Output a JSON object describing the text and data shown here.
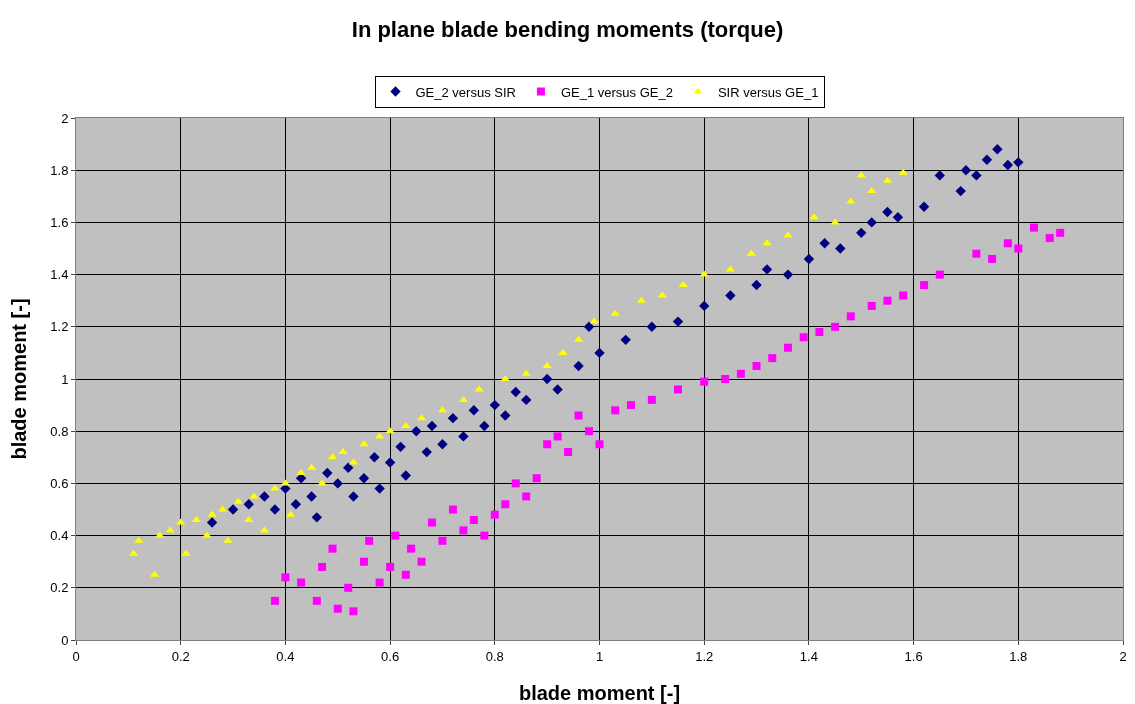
{
  "chart_data": {
    "type": "scatter",
    "title": "In plane blade bending moments (torque)",
    "xlabel": "blade moment [-]",
    "ylabel": "blade moment [-]",
    "xlim": [
      0,
      2
    ],
    "ylim": [
      0,
      2
    ],
    "xticks": [
      0,
      0.2,
      0.4,
      0.6,
      0.8,
      1,
      1.2,
      1.4,
      1.6,
      1.8,
      2
    ],
    "yticks": [
      0,
      0.2,
      0.4,
      0.6,
      0.8,
      1,
      1.2,
      1.4,
      1.6,
      1.8,
      2
    ],
    "grid": true,
    "legend": "top",
    "series": [
      {
        "name": "GE_2 versus SIR",
        "color": "#000080",
        "marker": "diamond",
        "x": [
          0.26,
          0.3,
          0.33,
          0.36,
          0.38,
          0.4,
          0.42,
          0.43,
          0.45,
          0.46,
          0.48,
          0.5,
          0.52,
          0.53,
          0.55,
          0.57,
          0.58,
          0.6,
          0.62,
          0.63,
          0.65,
          0.67,
          0.68,
          0.7,
          0.72,
          0.74,
          0.76,
          0.78,
          0.8,
          0.82,
          0.84,
          0.86,
          0.9,
          0.92,
          0.96,
          0.98,
          1.0,
          1.05,
          1.1,
          1.15,
          1.2,
          1.25,
          1.3,
          1.32,
          1.36,
          1.4,
          1.43,
          1.46,
          1.5,
          1.52,
          1.55,
          1.57,
          1.62,
          1.65,
          1.69,
          1.7,
          1.72,
          1.74,
          1.76,
          1.78,
          1.8
        ],
        "values": [
          0.45,
          0.5,
          0.52,
          0.55,
          0.5,
          0.58,
          0.52,
          0.62,
          0.55,
          0.47,
          0.64,
          0.6,
          0.66,
          0.55,
          0.62,
          0.7,
          0.58,
          0.68,
          0.74,
          0.63,
          0.8,
          0.72,
          0.82,
          0.75,
          0.85,
          0.78,
          0.88,
          0.82,
          0.9,
          0.86,
          0.95,
          0.92,
          1.0,
          0.96,
          1.05,
          1.2,
          1.1,
          1.15,
          1.2,
          1.22,
          1.28,
          1.32,
          1.36,
          1.42,
          1.4,
          1.46,
          1.52,
          1.5,
          1.56,
          1.6,
          1.64,
          1.62,
          1.66,
          1.78,
          1.72,
          1.8,
          1.78,
          1.84,
          1.88,
          1.82,
          1.83
        ]
      },
      {
        "name": "GE_1 versus GE_2",
        "color": "#ff00ff",
        "marker": "square",
        "x": [
          0.38,
          0.4,
          0.43,
          0.46,
          0.47,
          0.49,
          0.5,
          0.52,
          0.53,
          0.55,
          0.56,
          0.58,
          0.6,
          0.61,
          0.63,
          0.64,
          0.66,
          0.68,
          0.7,
          0.72,
          0.74,
          0.76,
          0.78,
          0.8,
          0.82,
          0.84,
          0.86,
          0.88,
          0.9,
          0.92,
          0.94,
          0.96,
          0.98,
          1.0,
          1.03,
          1.06,
          1.1,
          1.15,
          1.2,
          1.24,
          1.27,
          1.3,
          1.33,
          1.36,
          1.39,
          1.42,
          1.45,
          1.48,
          1.52,
          1.55,
          1.58,
          1.62,
          1.65,
          1.72,
          1.75,
          1.78,
          1.8,
          1.83,
          1.86,
          1.88
        ],
        "values": [
          0.15,
          0.24,
          0.22,
          0.15,
          0.28,
          0.35,
          0.12,
          0.2,
          0.11,
          0.3,
          0.38,
          0.22,
          0.28,
          0.4,
          0.25,
          0.35,
          0.3,
          0.45,
          0.38,
          0.5,
          0.42,
          0.46,
          0.4,
          0.48,
          0.52,
          0.6,
          0.55,
          0.62,
          0.75,
          0.78,
          0.72,
          0.86,
          0.8,
          0.75,
          0.88,
          0.9,
          0.92,
          0.96,
          0.99,
          1.0,
          1.02,
          1.05,
          1.08,
          1.12,
          1.16,
          1.18,
          1.2,
          1.24,
          1.28,
          1.3,
          1.32,
          1.36,
          1.4,
          1.48,
          1.46,
          1.52,
          1.5,
          1.58,
          1.54,
          1.56
        ]
      },
      {
        "name": "SIR versus GE_1",
        "color": "#ffff00",
        "marker": "triangle",
        "x": [
          0.11,
          0.12,
          0.15,
          0.16,
          0.18,
          0.2,
          0.21,
          0.23,
          0.25,
          0.26,
          0.28,
          0.29,
          0.31,
          0.33,
          0.34,
          0.36,
          0.38,
          0.4,
          0.41,
          0.43,
          0.45,
          0.47,
          0.49,
          0.51,
          0.53,
          0.55,
          0.58,
          0.6,
          0.63,
          0.66,
          0.7,
          0.74,
          0.77,
          0.82,
          0.86,
          0.9,
          0.93,
          0.96,
          0.99,
          1.03,
          1.08,
          1.12,
          1.16,
          1.2,
          1.25,
          1.29,
          1.32,
          1.36,
          1.41,
          1.45,
          1.48,
          1.5,
          1.52,
          1.55,
          1.58
        ],
        "values": [
          0.33,
          0.38,
          0.25,
          0.4,
          0.42,
          0.45,
          0.33,
          0.46,
          0.4,
          0.48,
          0.5,
          0.38,
          0.53,
          0.46,
          0.55,
          0.42,
          0.58,
          0.6,
          0.48,
          0.64,
          0.66,
          0.6,
          0.7,
          0.72,
          0.68,
          0.75,
          0.78,
          0.8,
          0.82,
          0.85,
          0.88,
          0.92,
          0.96,
          1.0,
          1.02,
          1.05,
          1.1,
          1.15,
          1.22,
          1.25,
          1.3,
          1.32,
          1.36,
          1.4,
          1.42,
          1.48,
          1.52,
          1.55,
          1.62,
          1.6,
          1.68,
          1.78,
          1.72,
          1.76,
          1.79
        ]
      }
    ]
  }
}
